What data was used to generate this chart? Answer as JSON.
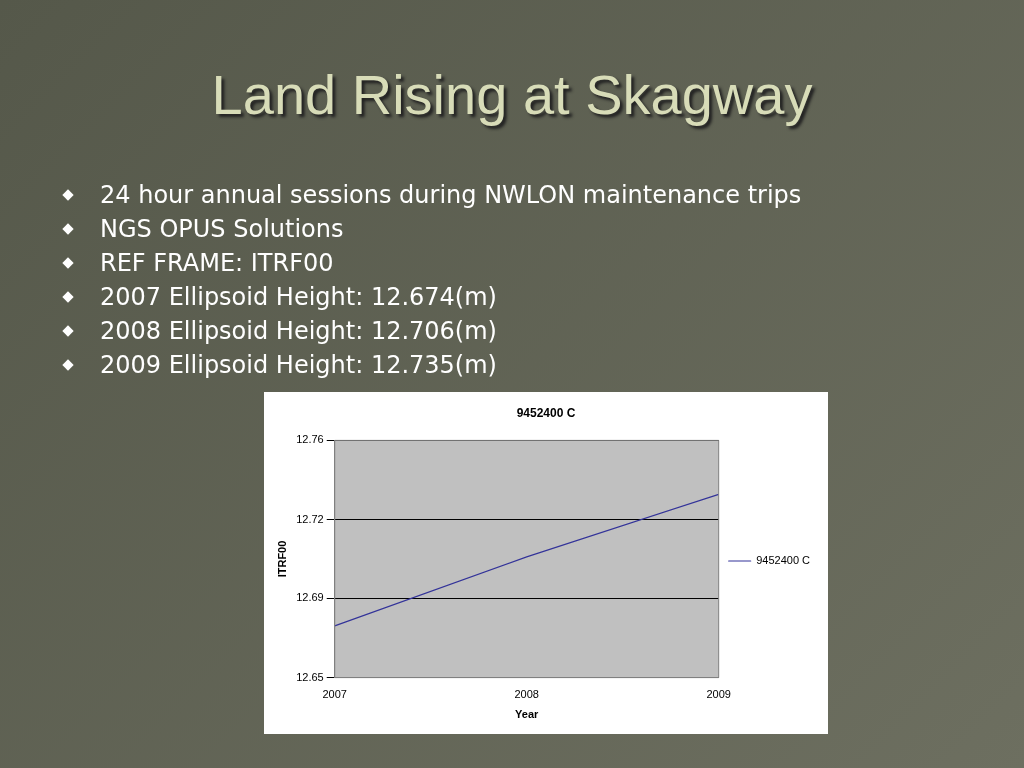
{
  "chart_data": {
    "type": "line",
    "title": "Land Rising at Skagway",
    "subtitle": "9452400 C",
    "xlabel": "Year",
    "ylabel": "ITRF00",
    "annotations": [
      "24 hour annual sessions during NWLON maintenance trips",
      "NGS OPUS Solutions",
      "REF FRAME: ITRF00",
      "2007 Ellipsoid Height: 12.674(m)",
      "2008 Ellipsoid Height: 12.706(m)",
      "2009 Ellipsoid Height: 12.735(m)"
    ],
    "x": [
      2007,
      2008,
      2009
    ],
    "series": [
      {
        "name": "9452400 C",
        "color": "#333399",
        "values": [
          12.674,
          12.706,
          12.735
        ]
      }
    ],
    "xlim": [
      2007,
      2009
    ],
    "xticks": [
      2007,
      2008,
      2009
    ],
    "ylim": [
      12.65,
      12.76
    ],
    "yticks": [
      12.65,
      {
        "value": 12.6867,
        "label": "12.69"
      },
      {
        "value": 12.7233,
        "label": "12.72"
      },
      12.76
    ],
    "grid": "y",
    "legend": "right",
    "marker": "none",
    "line_style": "solid"
  }
}
